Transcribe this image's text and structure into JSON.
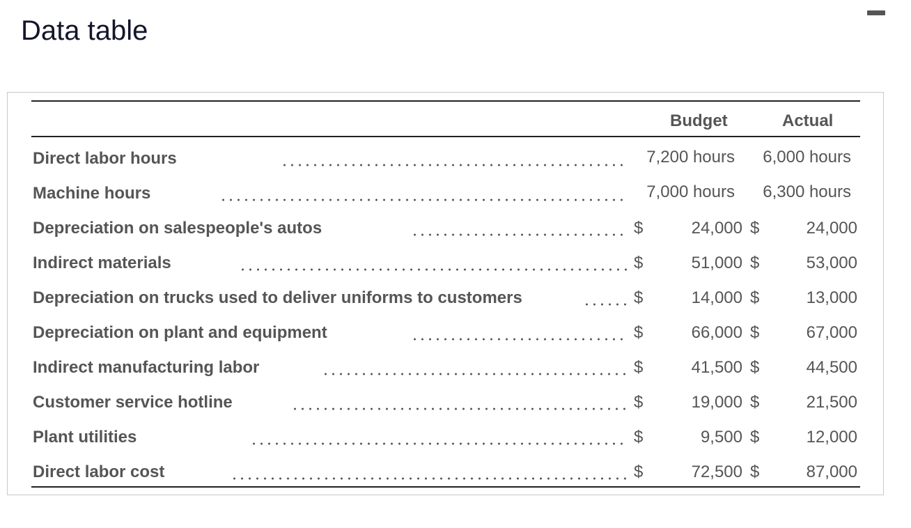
{
  "header": {
    "title": "Data table"
  },
  "table": {
    "columns": [
      "Budget",
      "Actual"
    ],
    "rows": [
      {
        "label": "Direct labor hours",
        "budget": "7,200 hours",
        "actual": "6,000 hours"
      },
      {
        "label": "Machine hours",
        "budget": "7,000 hours",
        "actual": "6,300 hours"
      },
      {
        "label": "Depreciation on salespeople's autos",
        "currency": "$",
        "budget": "24,000",
        "actual": "24,000"
      },
      {
        "label": "Indirect materials",
        "currency": "$",
        "budget": "51,000",
        "actual": "53,000"
      },
      {
        "label": "Depreciation on trucks used to deliver uniforms to customers",
        "currency": "$",
        "budget": "14,000",
        "actual": "13,000"
      },
      {
        "label": "Depreciation on plant and equipment",
        "currency": "$",
        "budget": "66,000",
        "actual": "67,000"
      },
      {
        "label": "Indirect manufacturing labor",
        "currency": "$",
        "budget": "41,500",
        "actual": "44,500"
      },
      {
        "label": "Customer service hotline",
        "currency": "$",
        "budget": "19,000",
        "actual": "21,500"
      },
      {
        "label": "Plant utilities",
        "currency": "$",
        "budget": "9,500",
        "actual": "12,000"
      },
      {
        "label": "Direct labor cost",
        "currency": "$",
        "budget": "72,500",
        "actual": "87,000"
      }
    ]
  }
}
